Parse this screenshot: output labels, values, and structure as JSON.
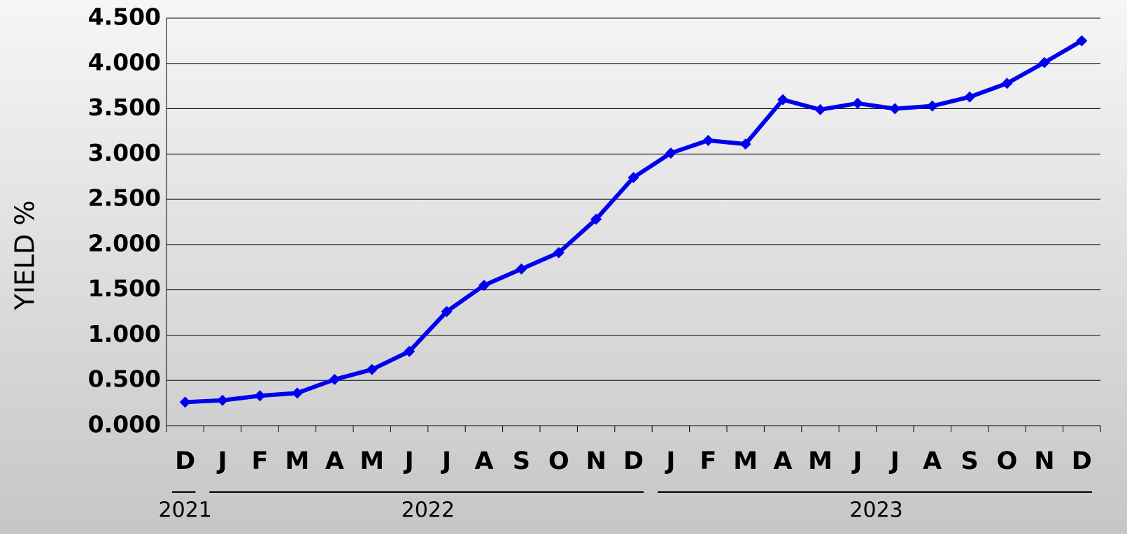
{
  "chart_data": {
    "type": "line",
    "y_label": "YIELD %",
    "categories": [
      "D",
      "J",
      "F",
      "M",
      "A",
      "M",
      "J",
      "J",
      "A",
      "S",
      "O",
      "N",
      "D",
      "J",
      "F",
      "M",
      "A",
      "M",
      "J",
      "J",
      "A",
      "S",
      "O",
      "N",
      "D"
    ],
    "year_labels": [
      "2021",
      "2022",
      "2023"
    ],
    "series": [
      {
        "name": "Yield",
        "color": "#0000ee",
        "values": [
          0.26,
          0.28,
          0.33,
          0.36,
          0.51,
          0.62,
          0.82,
          1.26,
          1.55,
          1.73,
          1.91,
          2.28,
          2.74,
          3.01,
          3.15,
          3.11,
          3.6,
          3.49,
          3.56,
          3.5,
          3.53,
          3.63,
          3.78,
          4.01,
          4.25
        ]
      }
    ],
    "ylim": [
      0,
      4.5
    ],
    "yticks": [
      {
        "value": 0,
        "label": "0.000"
      },
      {
        "value": 0.5,
        "label": "0.500"
      },
      {
        "value": 1,
        "label": "1.000"
      },
      {
        "value": 1.5,
        "label": "1.500"
      },
      {
        "value": 2,
        "label": "2.000"
      },
      {
        "value": 2.5,
        "label": "2.500"
      },
      {
        "value": 3,
        "label": "3.000"
      },
      {
        "value": 3.5,
        "label": "3.500"
      },
      {
        "value": 4,
        "label": "4.000"
      },
      {
        "value": 4.5,
        "label": "4.500"
      }
    ],
    "grid": true
  }
}
